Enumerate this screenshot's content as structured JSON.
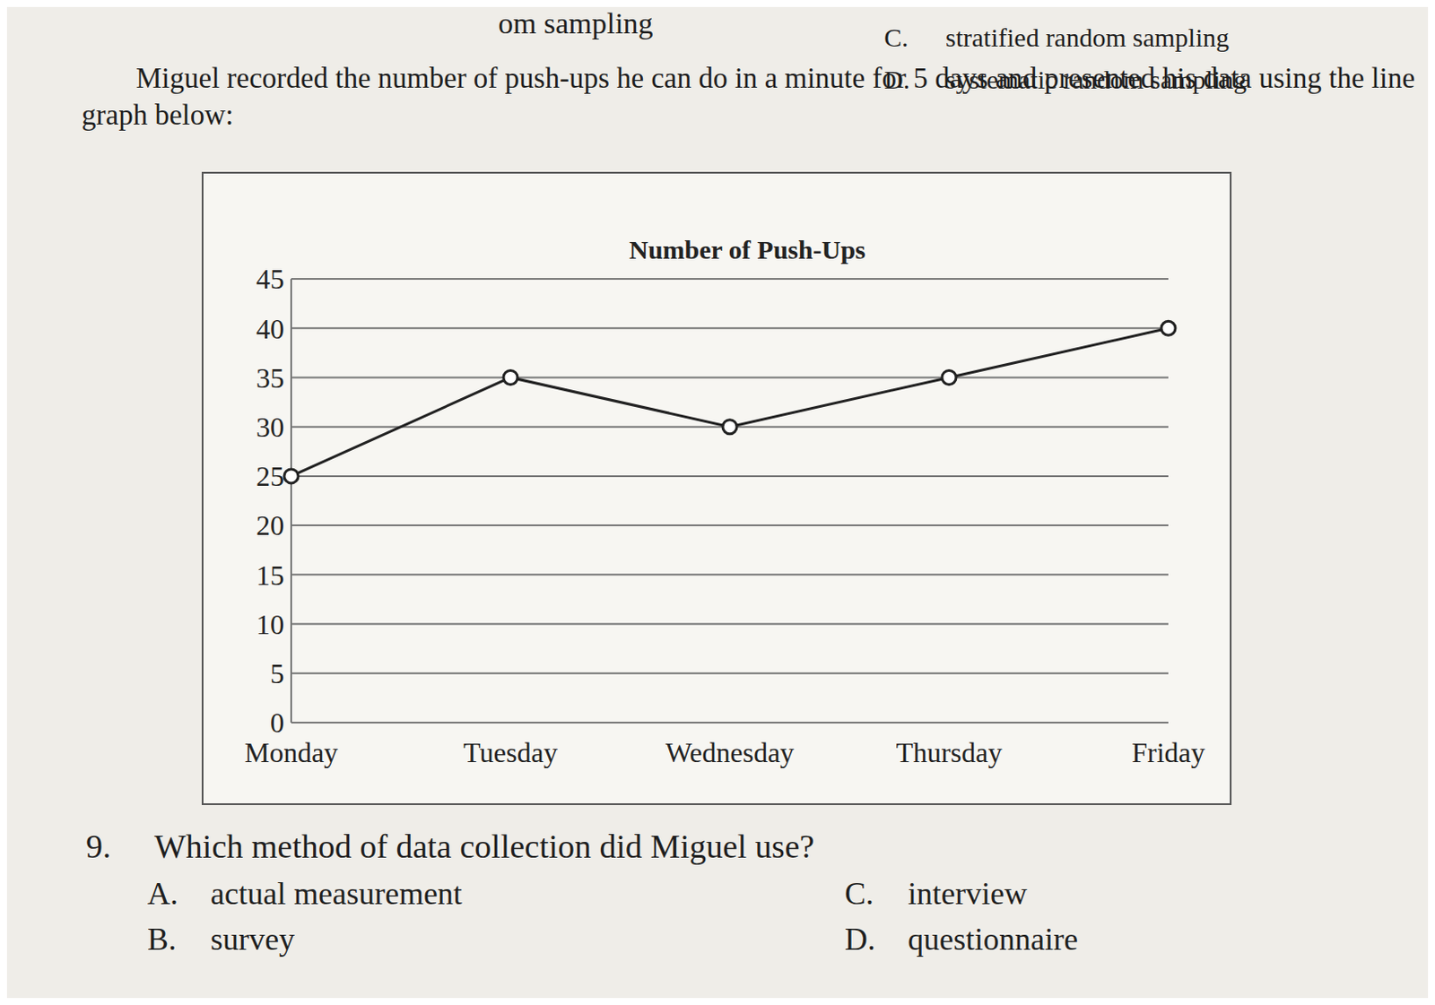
{
  "header": {
    "fragment": "om sampling",
    "options": [
      {
        "letter": "C.",
        "text": "stratified random sampling"
      },
      {
        "letter": "D.",
        "text": "systematic random sampling"
      }
    ]
  },
  "intro": "Miguel recorded the number of push-ups he can do in a minute for 5 days and presented his data using the line graph below:",
  "chart_data": {
    "type": "line",
    "title": "Number of Push-Ups",
    "categories": [
      "Monday",
      "Tuesday",
      "Wednesday",
      "Thursday",
      "Friday"
    ],
    "values": [
      25,
      35,
      30,
      35,
      40
    ],
    "color": "#222222",
    "marker": "circle_open",
    "ylim": [
      0,
      45
    ],
    "yticks": [
      0,
      5,
      10,
      15,
      20,
      25,
      30,
      35,
      40,
      45
    ],
    "grid": true
  },
  "question": {
    "number": "9.",
    "text": "Which method of data collection did Miguel use?",
    "options": [
      {
        "letter": "A.",
        "text": "actual measurement"
      },
      {
        "letter": "B.",
        "text": "survey"
      },
      {
        "letter": "C.",
        "text": "interview"
      },
      {
        "letter": "D.",
        "text": "questionnaire"
      }
    ]
  }
}
